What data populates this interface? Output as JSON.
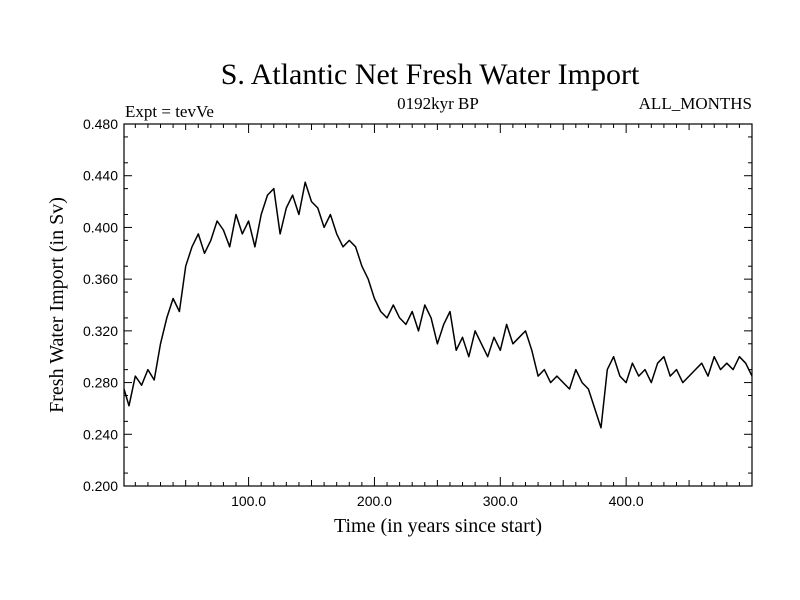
{
  "chart_data": {
    "type": "line",
    "title": "S. Atlantic Net Fresh Water Import",
    "subtitle_left": "Expt = tevVe",
    "subtitle_center": "0192kyr BP",
    "subtitle_right": "ALL_MONTHS",
    "xlabel": "Time (in years since start)",
    "ylabel": "Fresh Water Import (in Sv)",
    "xlim": [
      1,
      500
    ],
    "ylim": [
      0.2,
      0.48
    ],
    "x_ticks": [
      100,
      200,
      300,
      400
    ],
    "x_tick_labels": [
      "100.0",
      "200.0",
      "300.0",
      "400.0"
    ],
    "y_ticks": [
      0.2,
      0.24,
      0.28,
      0.32,
      0.36,
      0.4,
      0.44,
      0.48
    ],
    "y_tick_labels": [
      "0.200",
      "0.240",
      "0.280",
      "0.320",
      "0.360",
      "0.400",
      "0.440",
      "0.480"
    ],
    "series": [
      {
        "name": "Fresh Water Import",
        "x": [
          1,
          5,
          10,
          15,
          20,
          25,
          30,
          35,
          40,
          45,
          50,
          55,
          60,
          65,
          70,
          75,
          80,
          85,
          90,
          95,
          100,
          105,
          110,
          115,
          120,
          125,
          130,
          135,
          140,
          145,
          150,
          155,
          160,
          165,
          170,
          175,
          180,
          185,
          190,
          195,
          200,
          205,
          210,
          215,
          220,
          225,
          230,
          235,
          240,
          245,
          250,
          255,
          260,
          265,
          270,
          275,
          280,
          285,
          290,
          295,
          300,
          305,
          310,
          315,
          320,
          325,
          330,
          335,
          340,
          345,
          350,
          355,
          360,
          365,
          370,
          375,
          380,
          385,
          390,
          395,
          400,
          405,
          410,
          415,
          420,
          425,
          430,
          435,
          440,
          445,
          450,
          455,
          460,
          465,
          470,
          475,
          480,
          485,
          490,
          495,
          500
        ],
        "values": [
          0.275,
          0.262,
          0.285,
          0.278,
          0.29,
          0.282,
          0.31,
          0.33,
          0.345,
          0.335,
          0.37,
          0.385,
          0.395,
          0.38,
          0.39,
          0.405,
          0.398,
          0.385,
          0.41,
          0.395,
          0.405,
          0.385,
          0.41,
          0.425,
          0.43,
          0.395,
          0.415,
          0.425,
          0.41,
          0.435,
          0.42,
          0.415,
          0.4,
          0.41,
          0.395,
          0.385,
          0.39,
          0.385,
          0.37,
          0.36,
          0.345,
          0.335,
          0.33,
          0.34,
          0.33,
          0.325,
          0.335,
          0.32,
          0.34,
          0.33,
          0.31,
          0.325,
          0.335,
          0.305,
          0.315,
          0.3,
          0.32,
          0.31,
          0.3,
          0.315,
          0.305,
          0.325,
          0.31,
          0.315,
          0.32,
          0.305,
          0.285,
          0.29,
          0.28,
          0.285,
          0.28,
          0.275,
          0.29,
          0.28,
          0.275,
          0.26,
          0.245,
          0.29,
          0.3,
          0.285,
          0.28,
          0.295,
          0.285,
          0.29,
          0.28,
          0.295,
          0.3,
          0.285,
          0.29,
          0.28,
          0.285,
          0.29,
          0.295,
          0.285,
          0.3,
          0.29,
          0.295,
          0.29,
          0.3,
          0.295,
          0.285
        ]
      }
    ]
  }
}
